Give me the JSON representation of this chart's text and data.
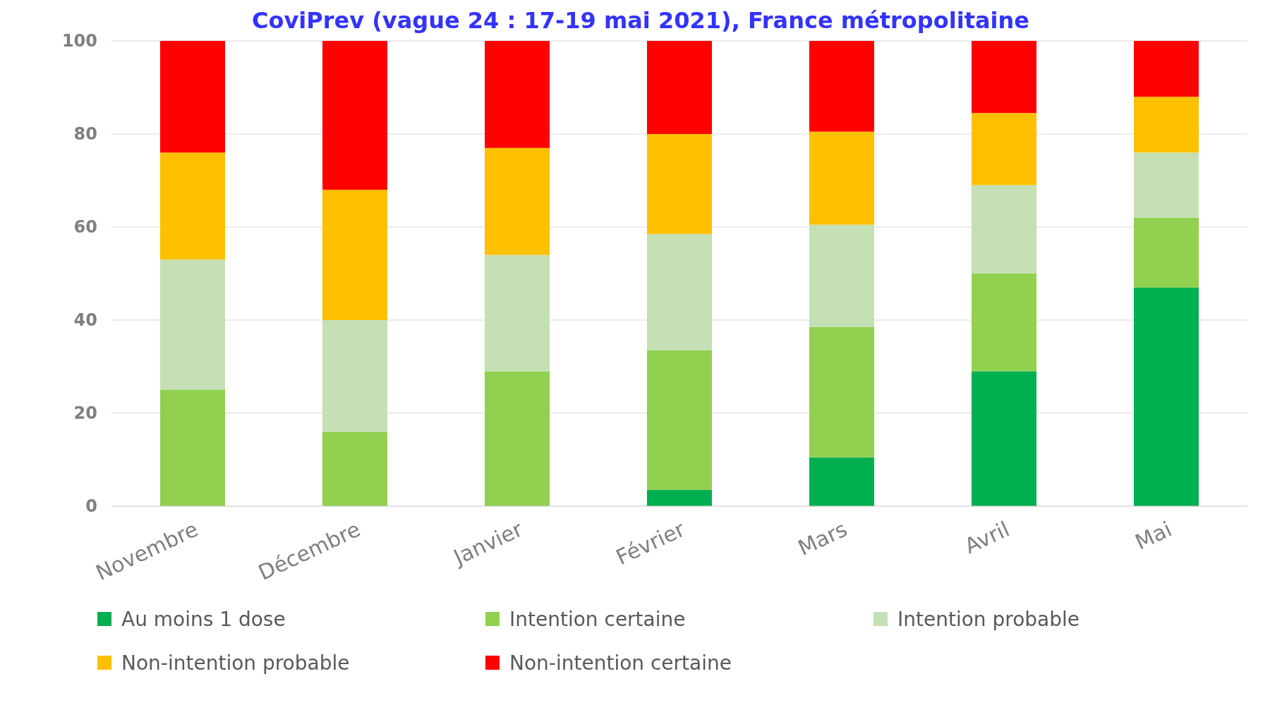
{
  "chart_data": {
    "type": "bar",
    "title": "CoviPrev (vague 24 : 17-19 mai 2021), France métropolitaine",
    "categories": [
      "Novembre",
      "Décembre",
      "Janvier",
      "Février",
      "Mars",
      "Avril",
      "Mai"
    ],
    "stacked": true,
    "ylim": [
      0,
      100
    ],
    "yticks": [
      0,
      20,
      40,
      60,
      80,
      100
    ],
    "grid": "y",
    "legend": "bottom",
    "series": [
      {
        "name": "Au moins 1 dose",
        "color": "#00b050",
        "values": [
          0,
          0,
          0,
          3.5,
          10.5,
          29,
          47
        ]
      },
      {
        "name": "Intention certaine",
        "color": "#92d050",
        "values": [
          25,
          16,
          29,
          30,
          28,
          21,
          15
        ]
      },
      {
        "name": "Intention probable",
        "color": "#c5e0b4",
        "values": [
          28,
          24,
          25,
          25,
          22,
          19,
          14
        ]
      },
      {
        "name": "Non-intention probable",
        "color": "#ffc000",
        "values": [
          23,
          28,
          23,
          21.5,
          20,
          15.5,
          12
        ]
      },
      {
        "name": "Non-intention certaine",
        "color": "#ff0000",
        "values": [
          24,
          32,
          23,
          20,
          19.5,
          15.5,
          12
        ]
      }
    ]
  }
}
